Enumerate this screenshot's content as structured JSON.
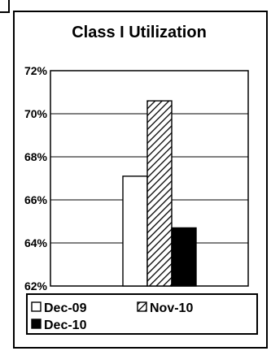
{
  "chart_data": {
    "type": "bar",
    "title": "Class I Utilization",
    "categories": [
      ""
    ],
    "series": [
      {
        "name": "Dec-09",
        "values": [
          67.1
        ],
        "color": "#ffffff",
        "pattern": "solid-white"
      },
      {
        "name": "Nov-10",
        "values": [
          70.6
        ],
        "color": "#000000",
        "pattern": "diagonal-hatch"
      },
      {
        "name": "Dec-10",
        "values": [
          64.7
        ],
        "color": "#000000",
        "pattern": "solid-black"
      }
    ],
    "yticks": [
      "62%",
      "64%",
      "66%",
      "68%",
      "70%",
      "72%"
    ],
    "ytick_values": [
      62,
      64,
      66,
      68,
      70,
      72
    ],
    "ylim": [
      62,
      72
    ],
    "xlabel": "",
    "ylabel": "",
    "grid": true,
    "legend": "bottom"
  }
}
